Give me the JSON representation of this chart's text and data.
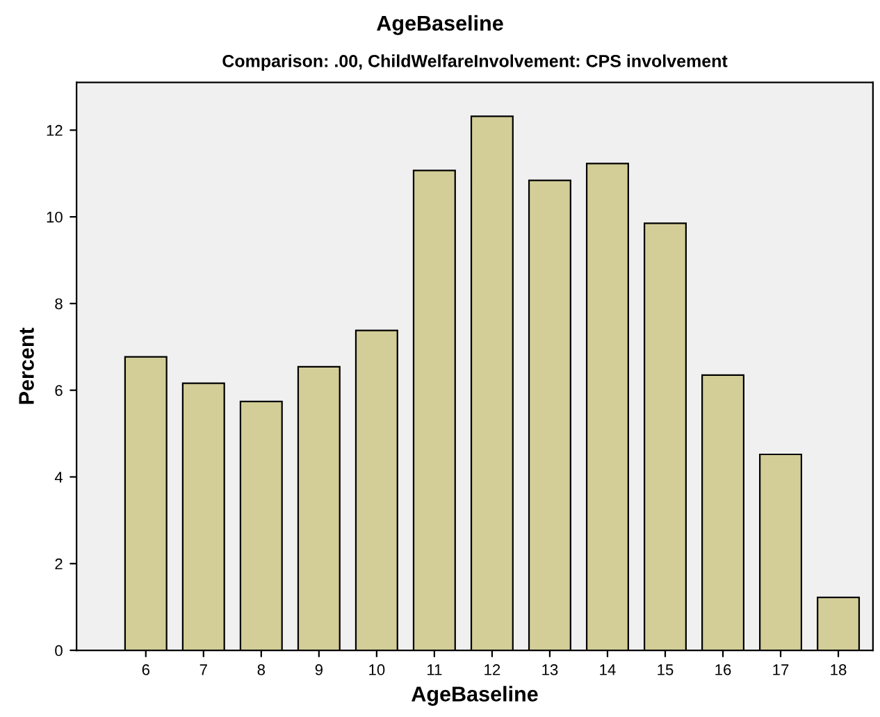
{
  "chart_data": {
    "type": "bar",
    "title": "AgeBaseline",
    "subtitle": "Comparison: .00, ChildWelfareInvolvement: CPS involvement",
    "xlabel": "AgeBaseline",
    "ylabel": "Percent",
    "categories": [
      "6",
      "7",
      "8",
      "9",
      "10",
      "11",
      "12",
      "13",
      "14",
      "15",
      "16",
      "17",
      "18"
    ],
    "values": [
      6.77,
      6.16,
      5.74,
      6.54,
      7.38,
      11.07,
      12.32,
      10.84,
      11.23,
      9.85,
      6.35,
      4.52,
      1.22
    ],
    "color": "#d3ce97",
    "ylim": [
      0,
      13.1
    ],
    "yticks": [
      0,
      2,
      4,
      6,
      8,
      10,
      12
    ],
    "grid": false,
    "legend": false
  }
}
